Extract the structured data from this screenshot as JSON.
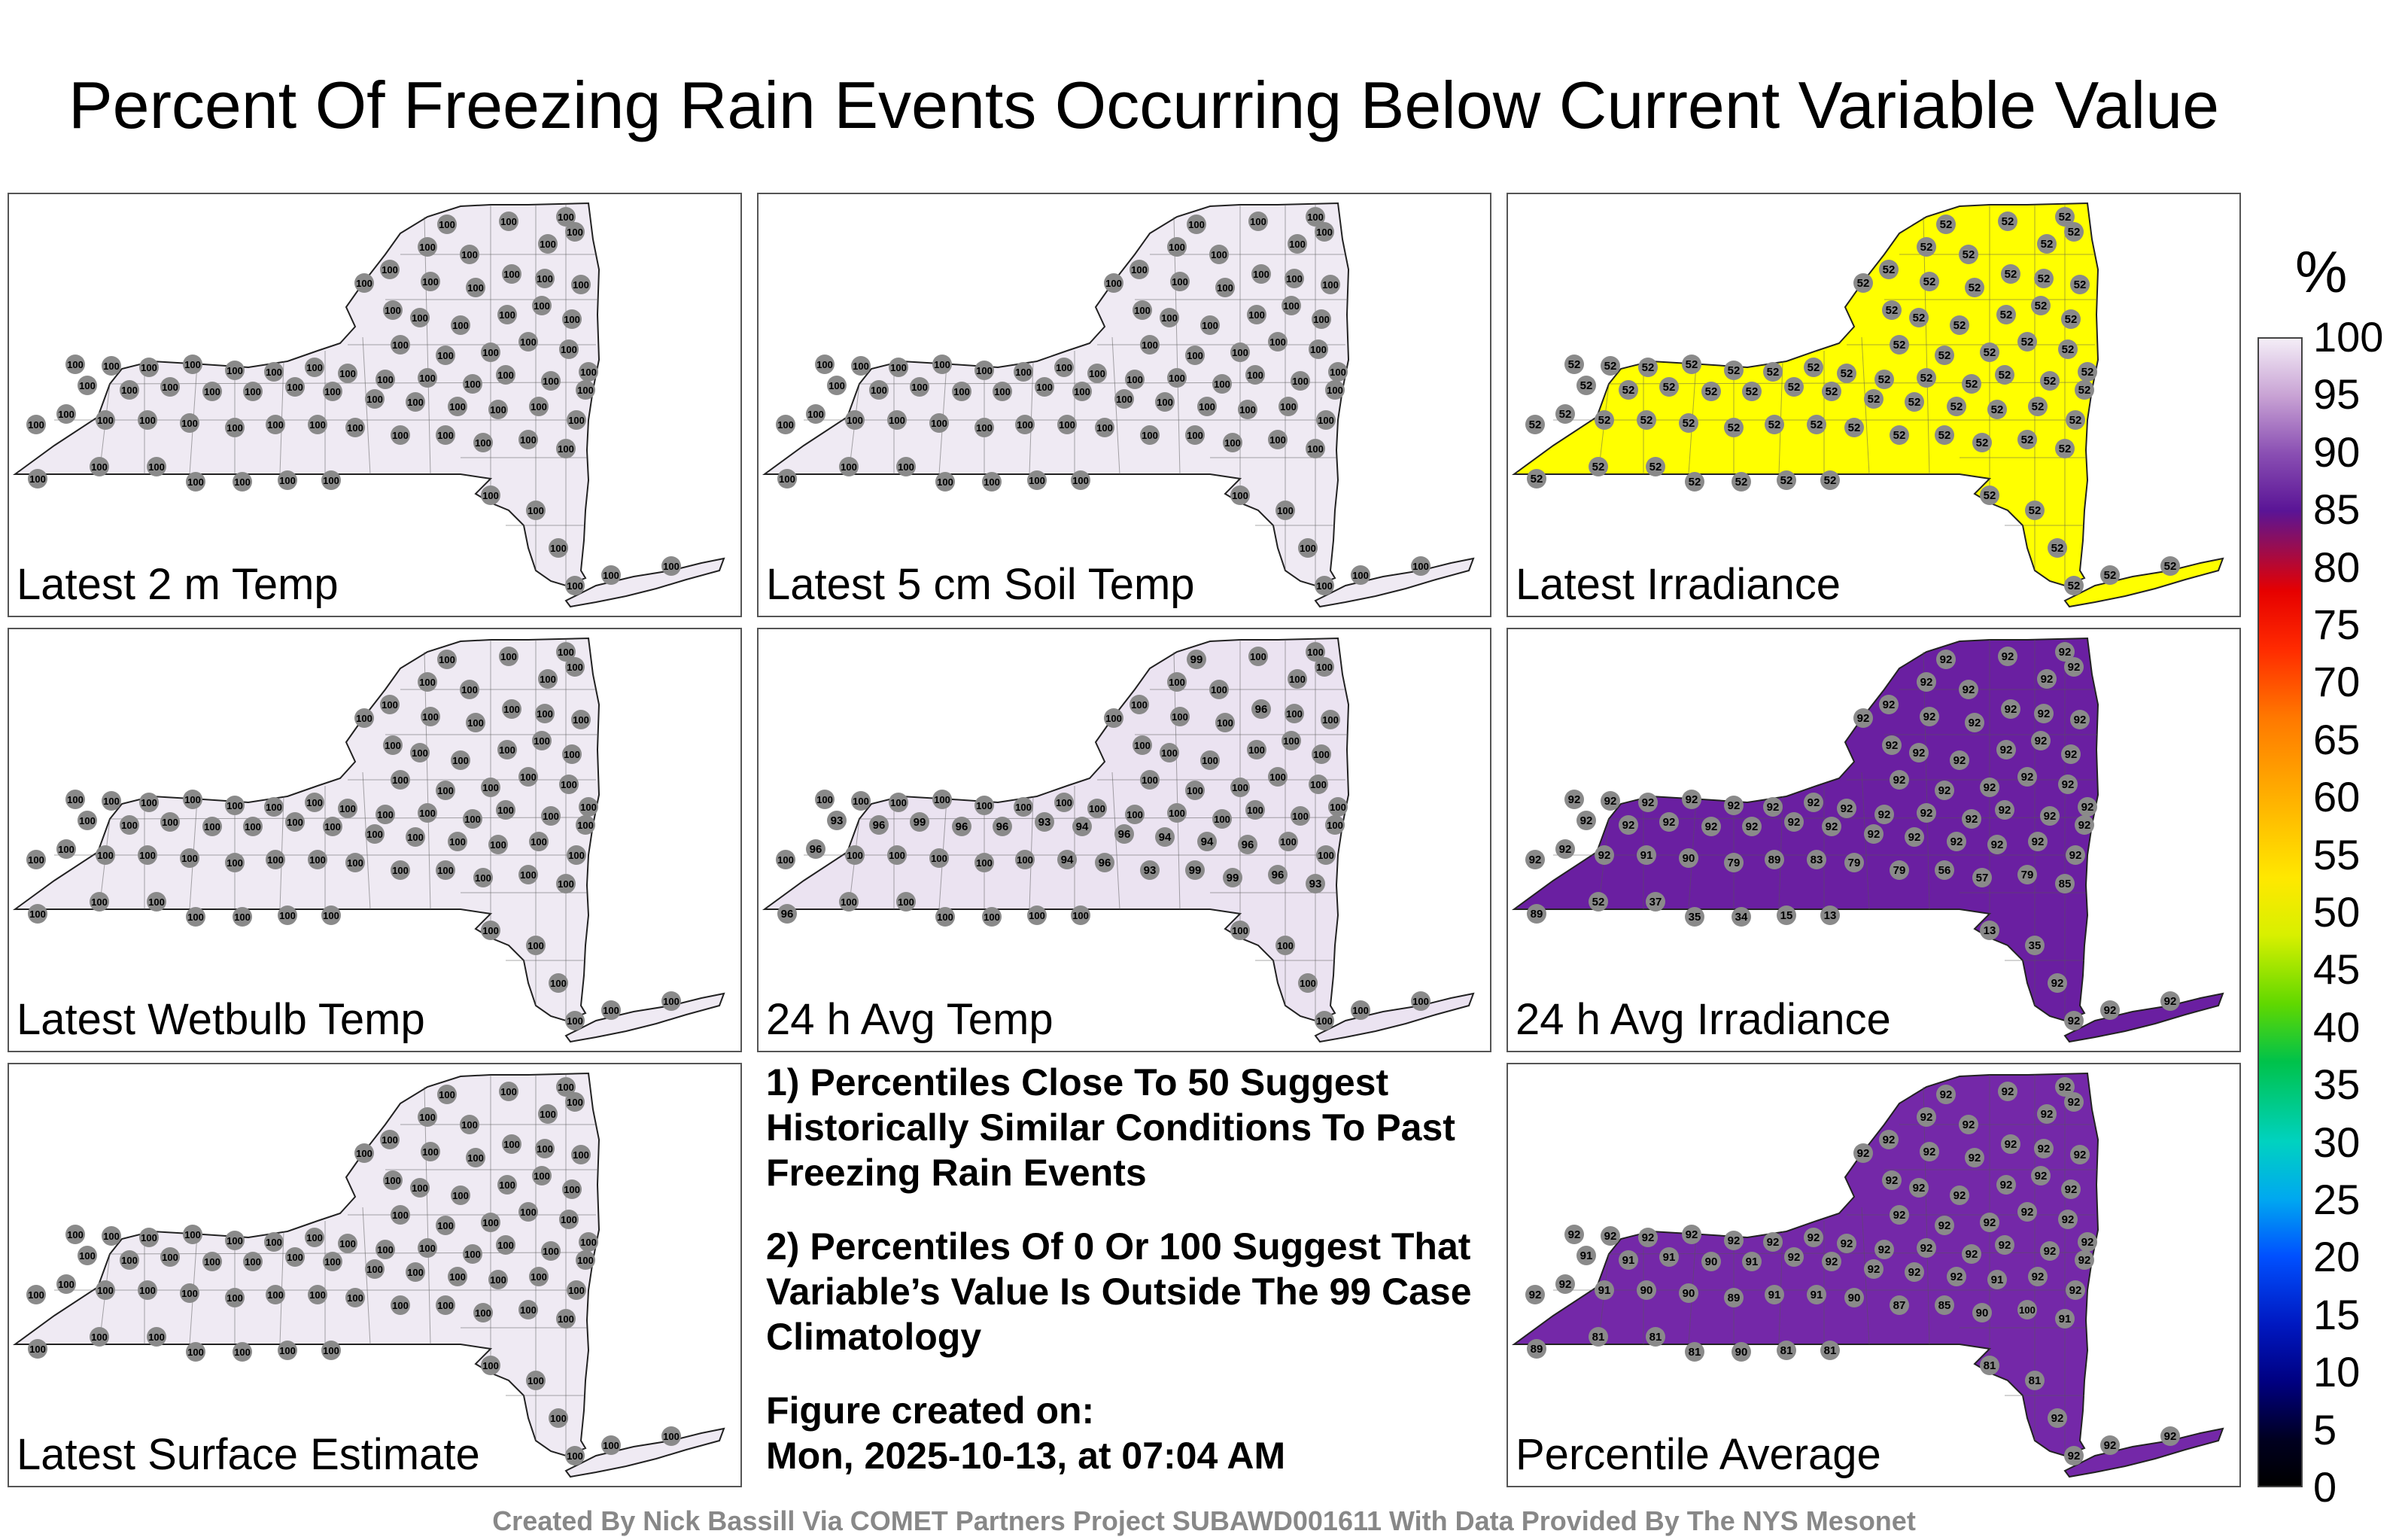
{
  "title": "Percent Of Freezing Rain Events Occurring Below Current Variable Value",
  "panels": [
    {
      "label": "Latest 2 m Temp",
      "fill": "#efeaf3",
      "default_value": "100",
      "overrides": {}
    },
    {
      "label": "Latest 5 cm Soil Temp",
      "fill": "#efeaf3",
      "default_value": "100",
      "overrides": {}
    },
    {
      "label": "Latest Irradiance",
      "fill": "#ffff00",
      "default_value": "52",
      "overrides": {}
    },
    {
      "label": "Latest Wetbulb Temp",
      "fill": "#efeaf3",
      "default_value": "100",
      "overrides": {}
    },
    {
      "label": "24 h Avg Temp",
      "fill": "#ebe3f1",
      "default_value": "100",
      "overrides": {
        "0": "99",
        "40": "93",
        "41": "96",
        "42": "99",
        "43": "96",
        "44": "96",
        "45": "93",
        "46": "94",
        "47": "96",
        "48": "94",
        "49": "94",
        "50": "96",
        "54": "96",
        "60": "94",
        "61": "96",
        "62": "93",
        "63": "99",
        "64": "99",
        "65": "96",
        "66": "93",
        "67": "96",
        "11": "96"
      }
    },
    {
      "label": "24 h Avg Irradiance",
      "fill": "#6a1fa1",
      "default_value": "92",
      "overrides": {
        "56": "91",
        "57": "90",
        "58": "79",
        "59": "89",
        "60": "83",
        "61": "79",
        "62": "79",
        "63": "56",
        "64": "57",
        "65": "79",
        "66": "85",
        "67": "89",
        "68": "52",
        "69": "37",
        "70": "35",
        "71": "34",
        "72": "15",
        "73": "13",
        "74": "13",
        "75": "35"
      }
    },
    {
      "label": "Percentile Average",
      "fill": "#7428a8",
      "default_value": "92",
      "overrides": {
        "40": "91",
        "41": "91",
        "42": "91",
        "43": "90",
        "44": "91",
        "50": "91",
        "55": "91",
        "56": "90",
        "57": "90",
        "58": "89",
        "59": "91",
        "60": "91",
        "61": "90",
        "62": "87",
        "63": "85",
        "64": "90",
        "65": "100",
        "66": "91",
        "67": "89",
        "68": "81",
        "69": "81",
        "70": "81",
        "71": "90",
        "72": "81",
        "73": "81",
        "74": "81",
        "75": "81"
      }
    },
    {
      "label": "Latest Surface Estimate",
      "fill": "#efeaf3",
      "default_value": "100",
      "overrides": {}
    }
  ],
  "notes": [
    "1) Percentiles Close To 50 Suggest Historically Similar Conditions To Past Freezing Rain Events",
    "2) Percentiles Of 0 Or 100 Suggest That Variable’s Value Is Outside The 99 Case Climatology"
  ],
  "figure_created_label": "Figure created on:",
  "figure_created_value": "Mon, 2025-10-13, at 07:04 AM",
  "colorbar": {
    "unit": "%",
    "ticks": [
      "100",
      "95",
      "90",
      "85",
      "80",
      "75",
      "70",
      "65",
      "60",
      "55",
      "50",
      "45",
      "40",
      "35",
      "30",
      "25",
      "20",
      "15",
      "10",
      "5",
      "0"
    ]
  },
  "footer": "Created By Nick Bassill Via COMET Partners Project SUBAWD001611 With Data Provided By The NYS Mesonet"
}
